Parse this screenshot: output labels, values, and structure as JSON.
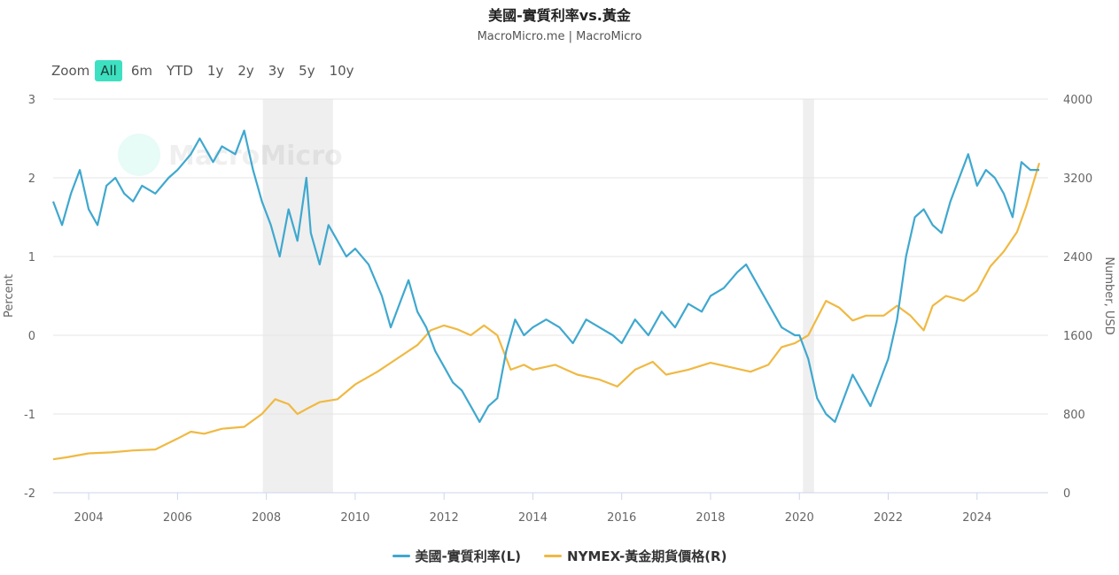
{
  "header": {
    "title": "美國-實質利率vs.黃金",
    "subtitle": "MacroMicro.me | MacroMicro"
  },
  "zoom": {
    "label": "Zoom",
    "buttons": [
      "All",
      "6m",
      "YTD",
      "1y",
      "2y",
      "3y",
      "5y",
      "10y"
    ],
    "active": "All"
  },
  "watermark": "MacroMicro",
  "chart_data": {
    "type": "line",
    "title": "美國-實質利率vs.黃金",
    "subtitle": "MacroMicro.me | MacroMicro",
    "xlim": [
      2003.2,
      2025.6
    ],
    "x_ticks": [
      "2004",
      "2006",
      "2008",
      "2010",
      "2012",
      "2014",
      "2016",
      "2018",
      "2020",
      "2022",
      "2024"
    ],
    "left_axis": {
      "label": "Percent",
      "ylim": [
        -2,
        3
      ],
      "ticks": [
        "3",
        "2",
        "1",
        "0",
        "-1",
        "-2"
      ]
    },
    "right_axis": {
      "label": "Number, USD",
      "ylim": [
        0,
        4000
      ],
      "ticks": [
        "4000",
        "3200",
        "2400",
        "1600",
        "800",
        "0"
      ]
    },
    "recession_bands": [
      [
        2007.92,
        2009.5
      ],
      [
        2020.08,
        2020.33
      ]
    ],
    "grid": true,
    "legend_position": "bottom",
    "series": [
      {
        "name": "美國-實質利率(L)",
        "axis": "left",
        "color": "#3fa8cf",
        "x": [
          2003.2,
          2003.4,
          2003.6,
          2003.8,
          2004.0,
          2004.2,
          2004.4,
          2004.6,
          2004.8,
          2005.0,
          2005.2,
          2005.5,
          2005.8,
          2006.0,
          2006.3,
          2006.5,
          2006.8,
          2007.0,
          2007.3,
          2007.5,
          2007.7,
          2007.9,
          2008.1,
          2008.3,
          2008.5,
          2008.7,
          2008.9,
          2009.0,
          2009.2,
          2009.4,
          2009.6,
          2009.8,
          2010.0,
          2010.3,
          2010.6,
          2010.8,
          2011.0,
          2011.2,
          2011.4,
          2011.6,
          2011.8,
          2012.0,
          2012.2,
          2012.4,
          2012.6,
          2012.8,
          2013.0,
          2013.2,
          2013.4,
          2013.6,
          2013.8,
          2014.0,
          2014.3,
          2014.6,
          2014.9,
          2015.2,
          2015.5,
          2015.8,
          2016.0,
          2016.3,
          2016.6,
          2016.9,
          2017.2,
          2017.5,
          2017.8,
          2018.0,
          2018.3,
          2018.6,
          2018.8,
          2019.0,
          2019.3,
          2019.6,
          2019.9,
          2020.0,
          2020.2,
          2020.4,
          2020.6,
          2020.8,
          2021.0,
          2021.2,
          2021.4,
          2021.6,
          2021.8,
          2022.0,
          2022.2,
          2022.4,
          2022.6,
          2022.8,
          2023.0,
          2023.2,
          2023.4,
          2023.6,
          2023.8,
          2024.0,
          2024.2,
          2024.4,
          2024.6,
          2024.8,
          2025.0,
          2025.2,
          2025.4
        ],
        "y": [
          1.7,
          1.4,
          1.8,
          2.1,
          1.6,
          1.4,
          1.9,
          2.0,
          1.8,
          1.7,
          1.9,
          1.8,
          2.0,
          2.1,
          2.3,
          2.5,
          2.2,
          2.4,
          2.3,
          2.6,
          2.1,
          1.7,
          1.4,
          1.0,
          1.6,
          1.2,
          2.0,
          1.3,
          0.9,
          1.4,
          1.2,
          1.0,
          1.1,
          0.9,
          0.5,
          0.1,
          0.4,
          0.7,
          0.3,
          0.1,
          -0.2,
          -0.4,
          -0.6,
          -0.7,
          -0.9,
          -1.1,
          -0.9,
          -0.8,
          -0.2,
          0.2,
          0.0,
          0.1,
          0.2,
          0.1,
          -0.1,
          0.2,
          0.1,
          0.0,
          -0.1,
          0.2,
          0.0,
          0.3,
          0.1,
          0.4,
          0.3,
          0.5,
          0.6,
          0.8,
          0.9,
          0.7,
          0.4,
          0.1,
          0.0,
          0.0,
          -0.3,
          -0.8,
          -1.0,
          -1.1,
          -0.8,
          -0.5,
          -0.7,
          -0.9,
          -0.6,
          -0.3,
          0.2,
          1.0,
          1.5,
          1.6,
          1.4,
          1.3,
          1.7,
          2.0,
          2.3,
          1.9,
          2.1,
          2.0,
          1.8,
          1.5,
          2.2,
          2.1,
          2.1
        ]
      },
      {
        "name": "NYMEX-黃金期貨價格(R)",
        "axis": "right",
        "color": "#f0b942",
        "x": [
          2003.2,
          2003.5,
          2004.0,
          2004.5,
          2005.0,
          2005.5,
          2006.0,
          2006.3,
          2006.6,
          2007.0,
          2007.5,
          2007.9,
          2008.2,
          2008.5,
          2008.7,
          2008.9,
          2009.2,
          2009.6,
          2010.0,
          2010.5,
          2011.0,
          2011.4,
          2011.7,
          2012.0,
          2012.3,
          2012.6,
          2012.9,
          2013.2,
          2013.5,
          2013.8,
          2014.0,
          2014.5,
          2015.0,
          2015.5,
          2015.9,
          2016.3,
          2016.7,
          2017.0,
          2017.5,
          2018.0,
          2018.5,
          2018.9,
          2019.3,
          2019.6,
          2019.9,
          2020.2,
          2020.6,
          2020.9,
          2021.2,
          2021.5,
          2021.9,
          2022.2,
          2022.5,
          2022.8,
          2023.0,
          2023.3,
          2023.7,
          2024.0,
          2024.3,
          2024.6,
          2024.9,
          2025.1,
          2025.3,
          2025.4
        ],
        "y": [
          340,
          360,
          400,
          410,
          430,
          440,
          550,
          620,
          600,
          650,
          670,
          800,
          950,
          900,
          800,
          850,
          920,
          950,
          1100,
          1230,
          1380,
          1500,
          1650,
          1700,
          1660,
          1600,
          1700,
          1600,
          1250,
          1300,
          1250,
          1300,
          1200,
          1150,
          1080,
          1250,
          1330,
          1200,
          1250,
          1320,
          1270,
          1230,
          1300,
          1480,
          1520,
          1600,
          1950,
          1880,
          1750,
          1800,
          1800,
          1900,
          1800,
          1650,
          1900,
          2000,
          1950,
          2050,
          2300,
          2450,
          2650,
          2900,
          3200,
          3350
        ]
      }
    ]
  },
  "legend": [
    {
      "label": "美國-實質利率(L)",
      "color": "#3fa8cf"
    },
    {
      "label": "NYMEX-黃金期貨價格(R)",
      "color": "#f0b942"
    }
  ]
}
